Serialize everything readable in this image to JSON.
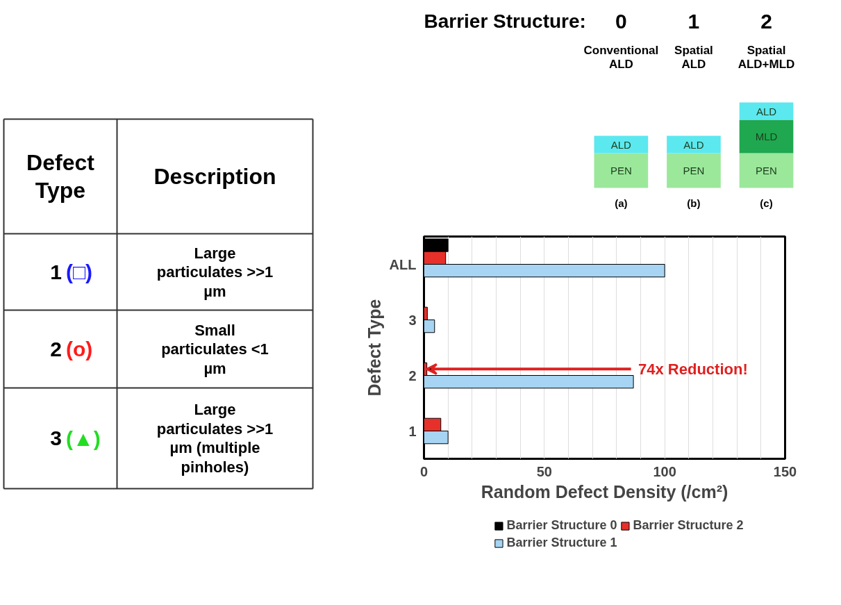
{
  "chart_data": [
    {
      "type": "other",
      "categories": [
        "Defect Type",
        "Description"
      ],
      "cell_labels": [
        [
          "1",
          "(□)",
          "Large particulates >>1 µm"
        ],
        [
          "2",
          "(o)",
          "Small particulates <1 µm"
        ],
        [
          "3",
          "(▲)",
          "Large particulates >>1 µm (multiple pinholes)"
        ]
      ],
      "colors": [
        [
          "#000000",
          "#1a1aff",
          "#000000"
        ],
        [
          "#000000",
          "#ff1a1a",
          "#000000"
        ],
        [
          "#000000",
          "#22dd22",
          "#000000"
        ]
      ]
    },
    {
      "type": "other",
      "title": "Barrier Structure:",
      "categories": [
        "0",
        "1",
        "2"
      ],
      "annotations": [
        "Conventional ALD",
        "Spatial ALD",
        "Spatial ALD+MLD",
        "(a)",
        "(b)",
        "(c)"
      ],
      "cell_labels": [
        [
          "ALD",
          "PEN"
        ],
        [
          "ALD",
          "PEN"
        ],
        [
          "ALD",
          "MLD",
          "PEN"
        ]
      ],
      "colors": [
        [
          "#5ce8ef",
          "#9be89b"
        ],
        [
          "#5ce8ef",
          "#9be89b"
        ],
        [
          "#5ce8ef",
          "#1fa84f",
          "#9be89b"
        ]
      ]
    },
    {
      "type": "bar",
      "orientation": "horizontal",
      "categories": [
        "ALL",
        "3",
        "2",
        "1"
      ],
      "series": [
        {
          "name": "Barrier Structure 0",
          "color": "#000000",
          "values": [
            10,
            null,
            null,
            null
          ]
        },
        {
          "name": "Barrier Structure 2",
          "color": "#e8302a",
          "values": [
            9,
            1.4,
            1.2,
            7
          ]
        },
        {
          "name": "Barrier Structure 1",
          "color": "#a6d4f2",
          "values": [
            100,
            4.4,
            87,
            10
          ]
        }
      ],
      "xlim": [
        0,
        150
      ],
      "xticks": [
        0,
        {
          "value": 10,
          "label": null
        },
        {
          "value": 20,
          "label": null
        },
        {
          "value": 30,
          "label": null
        },
        {
          "value": 40,
          "label": null
        },
        50,
        {
          "value": 60,
          "label": null
        },
        {
          "value": 70,
          "label": null
        },
        {
          "value": 80,
          "label": null
        },
        {
          "value": 90,
          "label": null
        },
        100,
        {
          "value": 110,
          "label": null
        },
        {
          "value": 120,
          "label": null
        },
        {
          "value": 130,
          "label": null
        },
        {
          "value": 140,
          "label": null
        },
        150
      ],
      "xlabel": "Random Defect Density (/cm²)",
      "ylabel": "Defect Type",
      "annotations": [
        {
          "text": "74x Reduction!",
          "x": 86,
          "y": "2"
        }
      ],
      "grid": "x",
      "legend": "bottom"
    }
  ]
}
